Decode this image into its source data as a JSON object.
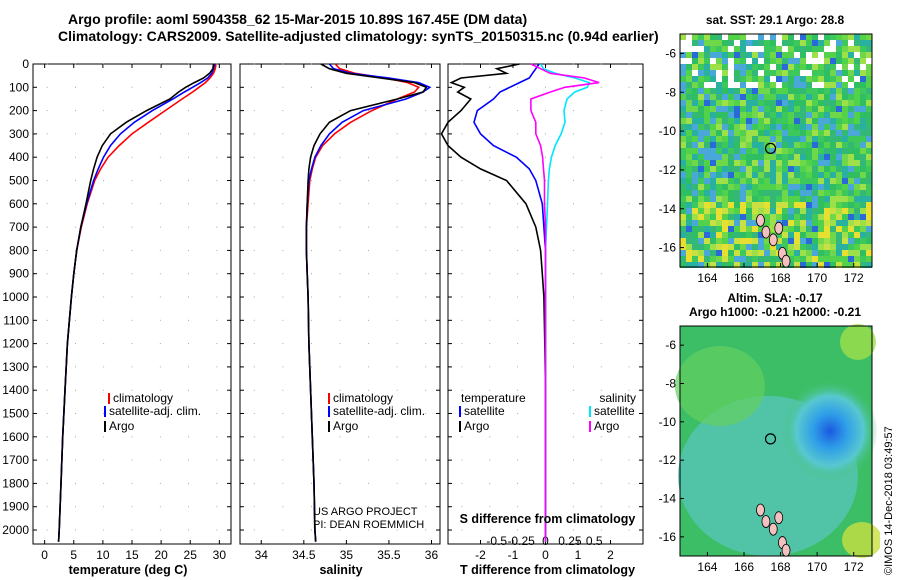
{
  "header": {
    "line1": "Argo profile: aoml 5904358_62 15-Mar-2015 10.89S 167.45E (DM data)",
    "line2": "Climatology: CARS2009. Satellite-adjusted climatology: synTS_20150315.nc (0.94d earlier)"
  },
  "colors": {
    "climatology": "#ff0000",
    "satellite": "#0000ff",
    "argo": "#000000",
    "sal_satellite": "#00e5ff",
    "sal_argo": "#ff00ff"
  },
  "chart_data": [
    {
      "type": "line",
      "name": "temperature-profile",
      "xlabel": "temperature (deg C)",
      "ylabel": "depth",
      "xlim": [
        -2,
        32
      ],
      "ylim": [
        2060,
        0
      ],
      "xticks": [
        0,
        5,
        10,
        15,
        20,
        25,
        30
      ],
      "yticks": [
        0,
        100,
        200,
        300,
        400,
        500,
        600,
        700,
        800,
        900,
        1000,
        1100,
        1200,
        1300,
        1400,
        1500,
        1600,
        1700,
        1800,
        1900,
        2000
      ],
      "depth": [
        0,
        20,
        40,
        60,
        80,
        100,
        120,
        150,
        200,
        250,
        300,
        350,
        400,
        450,
        500,
        600,
        700,
        800,
        900,
        1000,
        1200,
        1400,
        1600,
        1800,
        2000,
        2050
      ],
      "legend": [
        "climatology",
        "satellite-adj. clim.",
        "Argo"
      ],
      "series": [
        {
          "name": "climatology",
          "values": [
            29.4,
            29.3,
            29.0,
            28.4,
            27.6,
            26.5,
            25.4,
            23.6,
            20.7,
            17.8,
            15.0,
            12.8,
            10.9,
            9.6,
            8.6,
            7.3,
            6.3,
            5.5,
            5.0,
            4.6,
            3.9,
            3.5,
            3.1,
            2.8,
            2.5,
            2.4
          ]
        },
        {
          "name": "satellite-adj. clim.",
          "values": [
            29.2,
            29.0,
            28.7,
            28.0,
            26.8,
            25.4,
            24.0,
            22.0,
            18.5,
            15.4,
            13.0,
            11.3,
            10.1,
            9.2,
            8.4,
            7.2,
            6.2,
            5.5,
            5.0,
            4.6,
            3.9,
            3.5,
            3.1,
            2.8,
            2.5,
            2.4
          ]
        },
        {
          "name": "Argo",
          "values": [
            29.0,
            28.9,
            28.3,
            27.3,
            25.7,
            24.2,
            23.0,
            21.5,
            17.5,
            14.0,
            11.3,
            9.9,
            9.0,
            8.4,
            7.9,
            7.1,
            6.2,
            5.5,
            5.0,
            4.6,
            3.9,
            3.5,
            3.1,
            2.8,
            2.5,
            2.4
          ]
        }
      ]
    },
    {
      "type": "line",
      "name": "salinity-profile",
      "xlabel": "salinity",
      "xlim": [
        33.75,
        36.1
      ],
      "ylim": [
        2060,
        0
      ],
      "xticks": [
        34,
        34.5,
        35,
        35.5,
        36
      ],
      "xticklabels": [
        "34",
        "34.5",
        "35",
        "35.5",
        "36"
      ],
      "depth": [
        0,
        20,
        40,
        60,
        80,
        100,
        120,
        150,
        200,
        250,
        300,
        350,
        400,
        450,
        500,
        600,
        700,
        800,
        900,
        1000,
        1200,
        1400,
        1600,
        1800,
        2000,
        2050
      ],
      "legend": [
        "climatology",
        "satellite-adj. clim.",
        "Argo"
      ],
      "credit": [
        "US ARGO PROJECT",
        "PI: DEAN ROEMMICH"
      ],
      "series": [
        {
          "name": "climatology",
          "values": [
            34.87,
            34.92,
            35.1,
            35.45,
            35.72,
            35.85,
            35.8,
            35.6,
            35.3,
            35.05,
            34.86,
            34.72,
            34.64,
            34.6,
            34.57,
            34.55,
            34.53,
            34.53,
            34.54,
            34.55,
            34.56,
            34.58,
            34.6,
            34.62,
            34.63,
            34.64
          ]
        },
        {
          "name": "satellite-adj. clim.",
          "values": [
            34.8,
            34.85,
            35.05,
            35.5,
            35.85,
            35.98,
            35.9,
            35.7,
            35.2,
            34.95,
            34.8,
            34.7,
            34.63,
            34.59,
            34.56,
            34.54,
            34.53,
            34.53,
            34.54,
            34.55,
            34.56,
            34.58,
            34.6,
            34.62,
            34.63,
            34.64
          ]
        },
        {
          "name": "Argo",
          "values": [
            34.7,
            34.8,
            35.0,
            35.4,
            35.8,
            35.94,
            35.9,
            35.6,
            35.05,
            34.8,
            34.69,
            34.62,
            34.58,
            34.56,
            34.55,
            34.54,
            34.53,
            34.53,
            34.54,
            34.55,
            34.56,
            34.58,
            34.6,
            34.62,
            34.63,
            34.64
          ]
        }
      ]
    },
    {
      "type": "line",
      "name": "difference-profile",
      "xlabel_top": "S difference from climatology",
      "xlabel": "T difference from climatology",
      "xlim": [
        -3,
        3
      ],
      "ylim": [
        2060,
        0
      ],
      "xticks": [
        -2,
        -1,
        0,
        1,
        2
      ],
      "s_ticks": [
        -0.5,
        -0.25,
        0,
        0.25,
        0.5
      ],
      "s_ticklabels": [
        "-0.5",
        "-0.25",
        "0",
        "0.25",
        "0.5"
      ],
      "depth": [
        0,
        20,
        40,
        60,
        80,
        100,
        120,
        150,
        200,
        250,
        300,
        350,
        400,
        450,
        500,
        600,
        700,
        800,
        900,
        1000,
        1200,
        1400,
        1600,
        1800,
        2000,
        2050
      ],
      "legend_temperature_title": "temperature",
      "legend_salinity_title": "salinity",
      "legend_temperature": [
        "satellite",
        "Argo"
      ],
      "legend_salinity": [
        "satellite",
        "Argo"
      ],
      "series": [
        {
          "name": "T satellite",
          "values": [
            -0.2,
            -0.3,
            -0.4,
            -0.5,
            -0.8,
            -1.1,
            -1.4,
            -1.6,
            -2.1,
            -2.2,
            -2.0,
            -1.6,
            -0.9,
            -0.5,
            -0.3,
            -0.1,
            -0.05,
            0,
            0,
            0,
            0,
            0,
            0,
            0,
            0,
            0
          ]
        },
        {
          "name": "T Argo",
          "values": [
            -0.8,
            -1.5,
            -1.2,
            -2.6,
            -2.9,
            -2.5,
            -2.7,
            -2.3,
            -2.6,
            -3.0,
            -3.2,
            -3.0,
            -2.6,
            -2.0,
            -1.2,
            -0.6,
            -0.3,
            -0.15,
            -0.1,
            -0.05,
            -0.02,
            0,
            0,
            0,
            0,
            0
          ]
        },
        {
          "name": "S satellite",
          "values": [
            -0.05,
            -0.02,
            0.1,
            0.3,
            0.45,
            0.43,
            0.3,
            0.22,
            0.19,
            0.2,
            0.16,
            0.1,
            0.06,
            0.04,
            0.03,
            0.02,
            0.01,
            0,
            0,
            0,
            0,
            0,
            0,
            0,
            0,
            0
          ]
        },
        {
          "name": "S Argo",
          "values": [
            -0.15,
            -0.05,
            0.05,
            0.4,
            0.55,
            0.2,
            0.05,
            -0.15,
            -0.15,
            -0.1,
            -0.1,
            -0.05,
            -0.03,
            -0.02,
            -0.01,
            -0.01,
            0,
            0,
            0,
            0,
            0,
            0,
            0,
            0,
            0,
            0
          ]
        }
      ]
    },
    {
      "type": "heatmap",
      "name": "sst-map",
      "title": "sat. SST: 29.1 Argo: 28.8",
      "xticks": [
        164,
        166,
        168,
        170,
        172
      ],
      "yticks": [
        -6,
        -8,
        -10,
        -12,
        -14,
        -16
      ],
      "xlim": [
        162.5,
        173
      ],
      "ylim": [
        -17,
        -5
      ],
      "float_location": [
        167.45,
        -10.89
      ]
    },
    {
      "type": "heatmap",
      "name": "sla-map",
      "title_line1": "Altim. SLA: -0.17",
      "title_line2": "Argo h1000: -0.21 h2000: -0.21",
      "xticks": [
        164,
        166,
        168,
        170,
        172
      ],
      "yticks": [
        -6,
        -8,
        -10,
        -12,
        -14,
        -16
      ],
      "xlim": [
        162.5,
        173
      ],
      "ylim": [
        -17,
        -5
      ],
      "float_location": [
        167.45,
        -10.89
      ]
    }
  ],
  "footer": {
    "timestamp": "©IMOS 14-Dec-2018 03:49:57"
  }
}
